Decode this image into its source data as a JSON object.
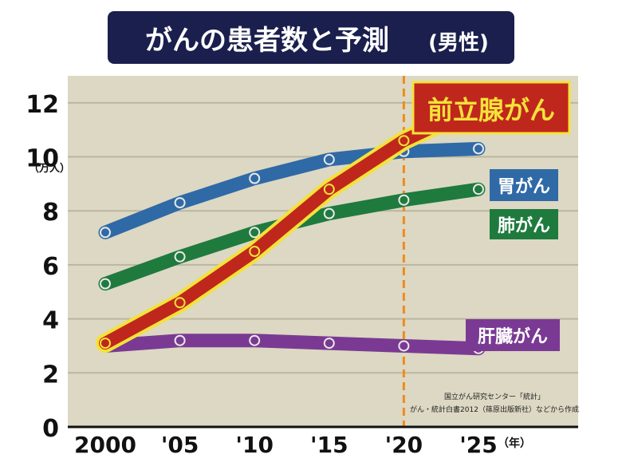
{
  "title": "がんの患者数と予測（男性）",
  "title_main": "がんの患者数と予測",
  "title_sub": "(男性)",
  "colors": {
    "title_bg": "#1a1f4d",
    "plot_bg": "#dcd8c3",
    "grid": "#bcb6a0",
    "forecast_line": "#f08a1c",
    "prostate": "#c0271c",
    "prostate_outline": "#f4e23a",
    "stomach": "#2f6aa7",
    "lung": "#1f7a3e",
    "liver": "#7a3a93"
  },
  "chart_data": {
    "type": "line",
    "title": "がんの患者数と予測（男性）",
    "unit_label": "（万人）",
    "x_unit_label": "（年）",
    "x": [
      2000,
      2005,
      2010,
      2015,
      2020,
      2025
    ],
    "x_tick_labels": [
      "2000",
      "'05",
      "'10",
      "'15",
      "'20",
      "'25"
    ],
    "ylim": [
      0,
      13
    ],
    "y_ticks": [
      0,
      2,
      4,
      6,
      8,
      10,
      12
    ],
    "grid": true,
    "forecast_from": 2020,
    "series": [
      {
        "name": "前立腺がん",
        "key": "prostate",
        "values": [
          3.1,
          4.6,
          6.5,
          8.8,
          10.6,
          11.9
        ]
      },
      {
        "name": "胃がん",
        "key": "stomach",
        "values": [
          7.2,
          8.3,
          9.2,
          9.9,
          10.2,
          10.3
        ]
      },
      {
        "name": "肺がん",
        "key": "lung",
        "values": [
          5.3,
          6.3,
          7.2,
          7.9,
          8.4,
          8.8
        ]
      },
      {
        "name": "肝臓がん",
        "key": "liver",
        "values": [
          3.0,
          3.2,
          3.2,
          3.1,
          3.0,
          2.9
        ]
      }
    ],
    "source_note_line1": "国立がん研究センター「統計」",
    "source_note_line2": "がん・統計白書2012（篠原出版新社）などから作成"
  }
}
